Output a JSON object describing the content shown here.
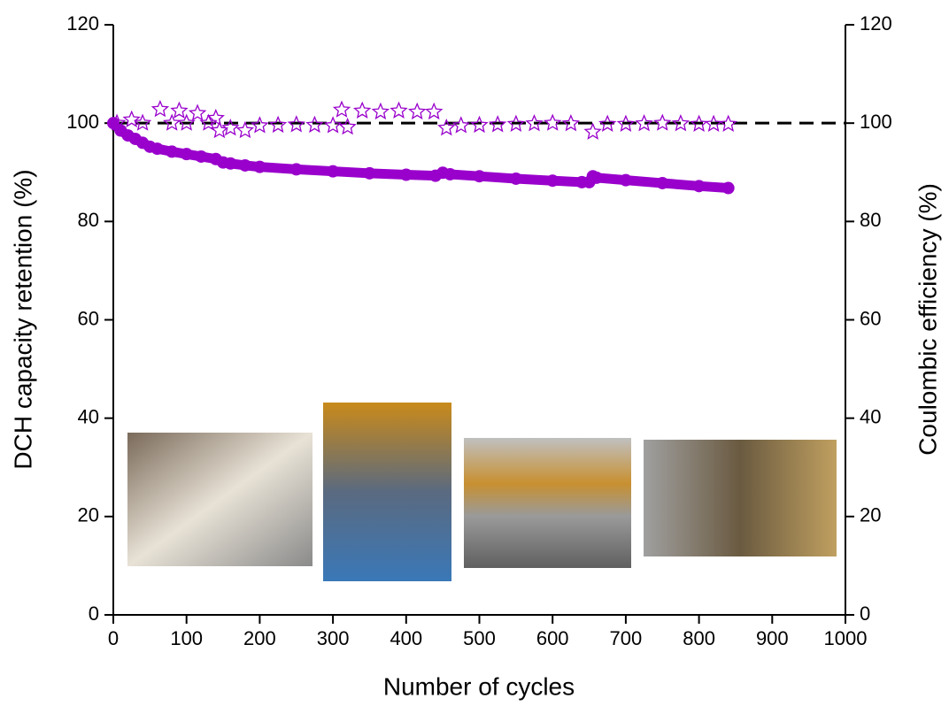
{
  "chart_data": {
    "type": "scatter",
    "x_label": "Number of cycles",
    "y_label": "DCH capacity retention (%)",
    "y2_label": "Coulombic efficiency (%)",
    "xlim": [
      0,
      1000
    ],
    "xticks": [
      0,
      100,
      200,
      300,
      400,
      500,
      600,
      700,
      800,
      900,
      1000
    ],
    "ylim": [
      0,
      120
    ],
    "yticks": [
      0,
      20,
      40,
      60,
      80,
      100,
      120
    ],
    "y2lim": [
      0,
      120
    ],
    "y2ticks": [
      0,
      20,
      40,
      60,
      80,
      100,
      120
    ],
    "reference_line": 100,
    "series": [
      {
        "color": "#9900cc",
        "marker": "circle",
        "x": [
          0,
          10,
          20,
          30,
          40,
          50,
          60,
          80,
          100,
          120,
          140,
          150,
          160,
          180,
          200,
          250,
          300,
          350,
          400,
          440,
          450,
          460,
          500,
          550,
          600,
          640,
          650,
          655,
          660,
          700,
          750,
          800,
          840
        ],
        "values": [
          100,
          98.5,
          97.5,
          96.8,
          96,
          95.2,
          94.8,
          94.2,
          93.7,
          93.2,
          92.7,
          92,
          91.8,
          91.4,
          91.1,
          90.6,
          90.2,
          89.8,
          89.5,
          89.3,
          89.9,
          89.6,
          89.2,
          88.7,
          88.3,
          88,
          88,
          89.2,
          88.9,
          88.4,
          87.8,
          87.2,
          86.8
        ]
      },
      {
        "color": "#9900cc",
        "marker": "star",
        "axis": "y2",
        "x": [
          5,
          25,
          40,
          64,
          80,
          90,
          100,
          115,
          130,
          140,
          145,
          160,
          180,
          200,
          225,
          250,
          275,
          300,
          312,
          320,
          340,
          365,
          390,
          415,
          438,
          455,
          475,
          500,
          525,
          550,
          575,
          600,
          625,
          655,
          675,
          700,
          725,
          750,
          775,
          800,
          820,
          840
        ],
        "values": [
          100,
          100.7,
          100,
          102.8,
          100,
          102.5,
          100,
          102,
          100,
          101,
          98.5,
          99,
          98.5,
          99.5,
          99.6,
          99.7,
          99.6,
          99.5,
          102.7,
          99.2,
          102.5,
          102.3,
          102.5,
          102.3,
          102.3,
          99,
          99.5,
          99.6,
          99.7,
          99.8,
          99.9,
          100,
          99.9,
          98.2,
          99.8,
          99.8,
          99.9,
          100,
          99.9,
          99.8,
          99.8,
          99.8
        ]
      }
    ]
  }
}
